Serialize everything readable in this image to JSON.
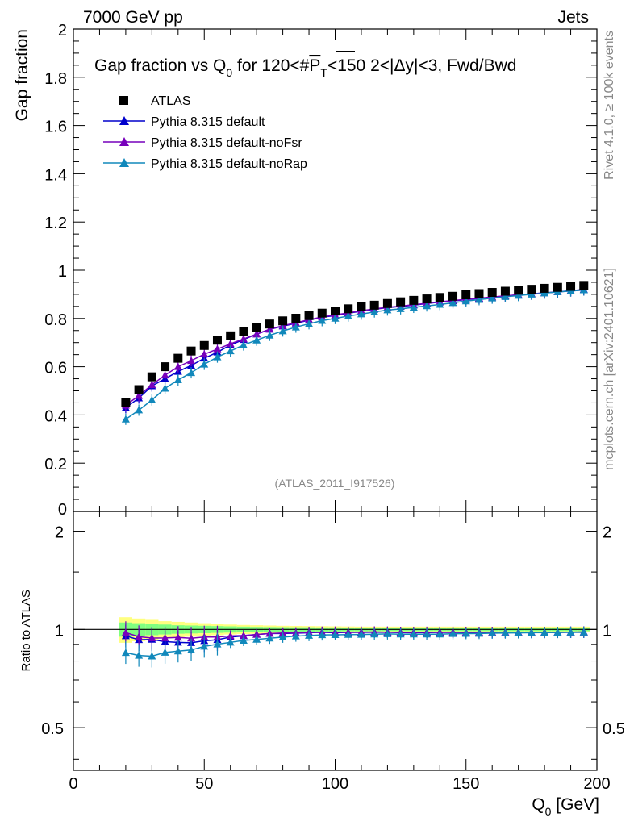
{
  "header": {
    "left": "7000 GeV pp",
    "right": "Jets"
  },
  "side": {
    "top": "Rivet 4.1.0, ≥ 100k events",
    "bottom": "mcplots.cern.ch [arXiv:2401.10621]"
  },
  "colors": {
    "atlas": "#000000",
    "default": "#0000cc",
    "noFsr": "#7700bb",
    "noRap": "#1188bb",
    "band_outer": "#ffff80",
    "band_inner": "#80ff80"
  },
  "chart_data": [
    {
      "type": "scatter",
      "title_main": "Gap fraction vs Q",
      "title_sub": "0",
      "title_rest": " for 120<#",
      "title_p": "P",
      "title_psub": "T",
      "title_tail": "<150  2<|Δy|<3, Fwd/Bwd",
      "ylabel": "Gap fraction",
      "ylim": [
        0,
        2
      ],
      "yticks": [
        "0",
        "0.2",
        "0.4",
        "0.6",
        "0.8",
        "1",
        "1.2",
        "1.4",
        "1.6",
        "1.8",
        "2"
      ],
      "watermark": "(ATLAS_2011_I917526)",
      "legend": [
        "ATLAS",
        "Pythia 8.315 default",
        "Pythia 8.315 default-noFsr",
        "Pythia 8.315 default-noRap"
      ],
      "x": [
        20,
        25,
        30,
        35,
        40,
        45,
        50,
        55,
        60,
        65,
        70,
        75,
        80,
        85,
        90,
        95,
        100,
        105,
        110,
        115,
        120,
        125,
        130,
        135,
        140,
        145,
        150,
        155,
        160,
        165,
        170,
        175,
        180,
        185,
        190,
        195
      ],
      "series": [
        {
          "name": "ATLAS",
          "values": [
            0.45,
            0.505,
            0.558,
            0.6,
            0.635,
            0.665,
            0.688,
            0.71,
            0.728,
            0.746,
            0.762,
            0.777,
            0.79,
            0.801,
            0.812,
            0.822,
            0.831,
            0.84,
            0.848,
            0.855,
            0.862,
            0.869,
            0.875,
            0.881,
            0.887,
            0.892,
            0.898,
            0.903,
            0.908,
            0.913,
            0.917,
            0.921,
            0.925,
            0.929,
            0.933,
            0.937
          ]
        },
        {
          "name": "Pythia 8.315 default",
          "values": [
            0.43,
            0.47,
            0.52,
            0.55,
            0.58,
            0.605,
            0.635,
            0.66,
            0.69,
            0.712,
            0.735,
            0.755,
            0.768,
            0.78,
            0.793,
            0.805,
            0.812,
            0.822,
            0.83,
            0.838,
            0.845,
            0.85,
            0.855,
            0.862,
            0.868,
            0.873,
            0.878,
            0.883,
            0.888,
            0.893,
            0.898,
            0.902,
            0.906,
            0.91,
            0.915,
            0.92
          ]
        },
        {
          "name": "Pythia 8.315 default-noFsr",
          "values": [
            0.44,
            0.48,
            0.525,
            0.565,
            0.6,
            0.625,
            0.652,
            0.673,
            0.695,
            0.715,
            0.735,
            0.755,
            0.77,
            0.782,
            0.795,
            0.806,
            0.815,
            0.823,
            0.832,
            0.84,
            0.846,
            0.851,
            0.857,
            0.863,
            0.869,
            0.874,
            0.879,
            0.884,
            0.889,
            0.894,
            0.898,
            0.902,
            0.906,
            0.91,
            0.914,
            0.918
          ]
        },
        {
          "name": "Pythia 8.315 default-noRap",
          "values": [
            0.382,
            0.42,
            0.462,
            0.51,
            0.545,
            0.575,
            0.61,
            0.64,
            0.665,
            0.69,
            0.71,
            0.73,
            0.748,
            0.764,
            0.778,
            0.791,
            0.8,
            0.81,
            0.818,
            0.827,
            0.835,
            0.84,
            0.846,
            0.852,
            0.858,
            0.865,
            0.872,
            0.878,
            0.884,
            0.89,
            0.895,
            0.9,
            0.905,
            0.91,
            0.914,
            0.918
          ]
        }
      ]
    },
    {
      "type": "scatter",
      "ylabel": "Ratio to ATLAS",
      "xlabel": "Q",
      "xlabel_sub": "0",
      "xlabel_unit": " [GeV]",
      "xlim": [
        0,
        200
      ],
      "ylim_log": [
        0.37,
        2.3
      ],
      "xticks": [
        "0",
        "50",
        "100",
        "150",
        "200"
      ],
      "yticks": [
        "0.5",
        "1",
        "2"
      ],
      "band_outer": [
        0.09,
        0.08,
        0.07,
        0.06,
        0.055,
        0.05,
        0.045,
        0.04,
        0.035,
        0.032,
        0.03,
        0.028,
        0.026,
        0.025,
        0.024,
        0.023,
        0.022,
        0.021,
        0.02,
        0.02,
        0.02,
        0.02,
        0.02,
        0.02,
        0.02,
        0.02,
        0.02,
        0.02,
        0.02,
        0.02,
        0.02,
        0.02,
        0.02,
        0.02,
        0.02,
        0.02
      ],
      "band_inner": [
        0.05,
        0.045,
        0.04,
        0.035,
        0.03,
        0.028,
        0.026,
        0.024,
        0.022,
        0.02,
        0.018,
        0.017,
        0.016,
        0.015,
        0.015,
        0.014,
        0.014,
        0.013,
        0.013,
        0.012,
        0.012,
        0.012,
        0.012,
        0.012,
        0.012,
        0.012,
        0.012,
        0.012,
        0.012,
        0.012,
        0.012,
        0.012,
        0.012,
        0.012,
        0.012,
        0.012
      ],
      "series": [
        {
          "name": "Pythia 8.315 default",
          "values": [
            0.955,
            0.93,
            0.932,
            0.917,
            0.913,
            0.91,
            0.923,
            0.93,
            0.948,
            0.955,
            0.965,
            0.972,
            0.972,
            0.974,
            0.977,
            0.979,
            0.977,
            0.979,
            0.979,
            0.98,
            0.98,
            0.978,
            0.977,
            0.978,
            0.979,
            0.979,
            0.978,
            0.978,
            0.978,
            0.978,
            0.979,
            0.979,
            0.979,
            0.979,
            0.981,
            0.982
          ]
        },
        {
          "name": "Pythia 8.315 default-noFsr",
          "values": [
            0.978,
            0.95,
            0.941,
            0.942,
            0.945,
            0.94,
            0.948,
            0.948,
            0.955,
            0.958,
            0.965,
            0.972,
            0.975,
            0.976,
            0.979,
            0.981,
            0.981,
            0.98,
            0.981,
            0.982,
            0.981,
            0.979,
            0.979,
            0.98,
            0.98,
            0.98,
            0.979,
            0.979,
            0.979,
            0.979,
            0.979,
            0.979,
            0.979,
            0.979,
            0.98,
            0.98
          ]
        },
        {
          "name": "Pythia 8.315 default-noRap",
          "values": [
            0.849,
            0.832,
            0.828,
            0.85,
            0.858,
            0.865,
            0.887,
            0.901,
            0.913,
            0.925,
            0.932,
            0.94,
            0.947,
            0.954,
            0.958,
            0.962,
            0.963,
            0.964,
            0.965,
            0.967,
            0.969,
            0.967,
            0.967,
            0.967,
            0.967,
            0.97,
            0.971,
            0.972,
            0.974,
            0.975,
            0.976,
            0.977,
            0.978,
            0.979,
            0.98,
            0.98
          ]
        }
      ]
    }
  ]
}
